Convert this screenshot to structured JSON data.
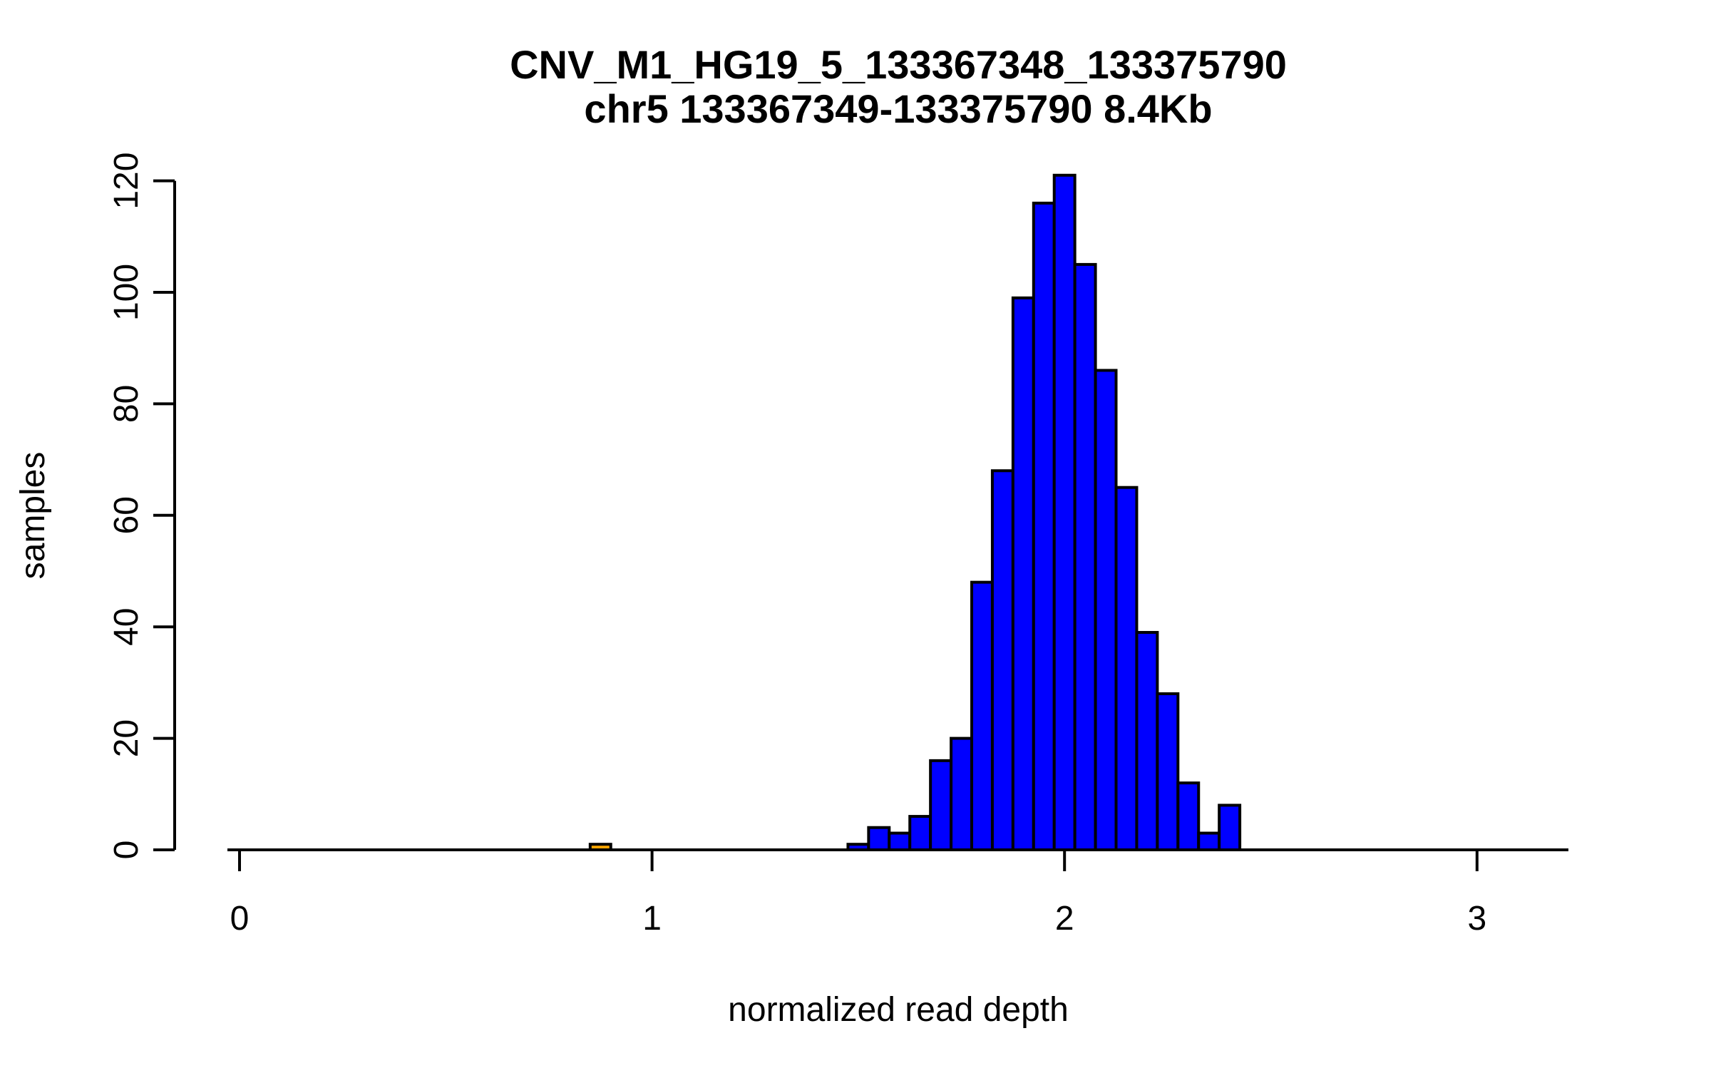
{
  "chart_data": {
    "type": "bar",
    "subtype": "histogram",
    "title": "CNV_M1_HG19_5_133367348_133375790",
    "subtitle": "chr5 133367349-133375790 8.4Kb",
    "xlabel": "normalized read depth",
    "ylabel": "samples",
    "bin_width": 0.05,
    "xlim": [
      -0.03,
      3.22
    ],
    "ylim": [
      0,
      122
    ],
    "x_ticks": [
      0,
      1,
      2,
      3
    ],
    "y_ticks": [
      0,
      20,
      40,
      60,
      80,
      100,
      120
    ],
    "grid": false,
    "legend": "none",
    "colors": {
      "main_fill": "#0000FF",
      "outlier_fill": "#FFA500",
      "bar_stroke": "#000000",
      "axis": "#000000",
      "background": "#FFFFFF"
    },
    "bars": [
      {
        "x0": 0.85,
        "x1": 0.9,
        "count": 1,
        "color": "#FFA500"
      },
      {
        "x0": 1.475,
        "x1": 1.525,
        "count": 1,
        "color": "#0000FF"
      },
      {
        "x0": 1.525,
        "x1": 1.575,
        "count": 4,
        "color": "#0000FF"
      },
      {
        "x0": 1.575,
        "x1": 1.625,
        "count": 3,
        "color": "#0000FF"
      },
      {
        "x0": 1.625,
        "x1": 1.675,
        "count": 6,
        "color": "#0000FF"
      },
      {
        "x0": 1.675,
        "x1": 1.725,
        "count": 16,
        "color": "#0000FF"
      },
      {
        "x0": 1.725,
        "x1": 1.775,
        "count": 20,
        "color": "#0000FF"
      },
      {
        "x0": 1.775,
        "x1": 1.825,
        "count": 48,
        "color": "#0000FF"
      },
      {
        "x0": 1.825,
        "x1": 1.875,
        "count": 68,
        "color": "#0000FF"
      },
      {
        "x0": 1.875,
        "x1": 1.925,
        "count": 99,
        "color": "#0000FF"
      },
      {
        "x0": 1.925,
        "x1": 1.975,
        "count": 116,
        "color": "#0000FF"
      },
      {
        "x0": 1.975,
        "x1": 2.025,
        "count": 121,
        "color": "#0000FF"
      },
      {
        "x0": 2.025,
        "x1": 2.075,
        "count": 105,
        "color": "#0000FF"
      },
      {
        "x0": 2.075,
        "x1": 2.125,
        "count": 86,
        "color": "#0000FF"
      },
      {
        "x0": 2.125,
        "x1": 2.175,
        "count": 65,
        "color": "#0000FF"
      },
      {
        "x0": 2.175,
        "x1": 2.225,
        "count": 39,
        "color": "#0000FF"
      },
      {
        "x0": 2.225,
        "x1": 2.275,
        "count": 28,
        "color": "#0000FF"
      },
      {
        "x0": 2.275,
        "x1": 2.325,
        "count": 12,
        "color": "#0000FF"
      },
      {
        "x0": 2.325,
        "x1": 2.375,
        "count": 3,
        "color": "#0000FF"
      },
      {
        "x0": 2.375,
        "x1": 2.425,
        "count": 8,
        "color": "#0000FF"
      }
    ]
  }
}
